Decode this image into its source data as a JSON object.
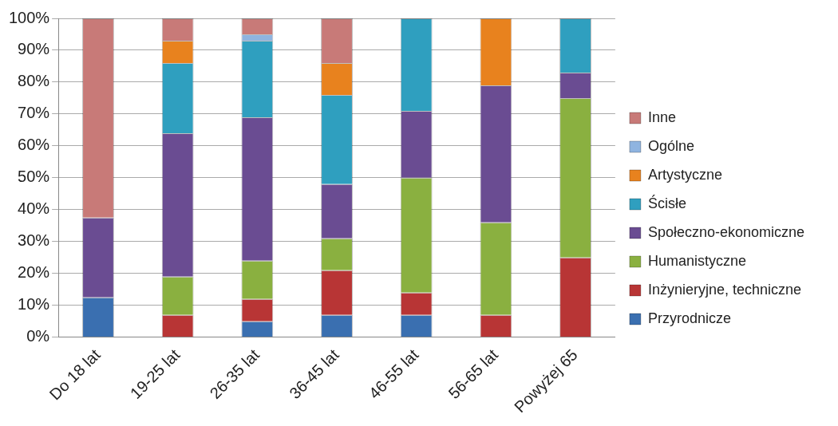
{
  "chart_data": {
    "type": "bar",
    "stacked": true,
    "categories": [
      "Do 18 lat",
      "19-25 lat",
      "26-35 lat",
      "36-45 lat",
      "46-55 lat",
      "56-65 lat",
      "Powyżej 65"
    ],
    "series": [
      {
        "name": "Przyrodnicze",
        "color": "#3a6fb0",
        "values": [
          12.5,
          0,
          5,
          7,
          7,
          0,
          0
        ]
      },
      {
        "name": "Inżynieryjne, techniczne",
        "color": "#b83535",
        "values": [
          0,
          7,
          7,
          14,
          7,
          7,
          25
        ]
      },
      {
        "name": "Humanistyczne",
        "color": "#8ab040",
        "values": [
          0,
          12,
          12,
          10,
          36,
          29,
          50
        ]
      },
      {
        "name": "Społeczno-ekonomiczne",
        "color": "#6a4c92",
        "values": [
          25,
          45,
          45,
          17,
          21,
          43,
          8
        ]
      },
      {
        "name": "Ścisłe",
        "color": "#2f9fbf",
        "values": [
          0,
          22,
          24,
          28,
          29,
          0,
          17
        ]
      },
      {
        "name": "Artystyczne",
        "color": "#e8821e",
        "values": [
          0,
          7,
          0,
          10,
          0,
          21,
          0
        ]
      },
      {
        "name": "Ogólne",
        "color": "#8fb4e0",
        "values": [
          0,
          0,
          2,
          0,
          0,
          0,
          0
        ]
      },
      {
        "name": "Inne",
        "color": "#c87a78",
        "values": [
          62.5,
          7,
          5,
          14,
          0,
          0,
          0
        ]
      }
    ],
    "ylim": [
      0,
      100
    ],
    "yticks": [
      {
        "value": 0,
        "label": "0%"
      },
      {
        "value": 10,
        "label": "10%"
      },
      {
        "value": 20,
        "label": "20%"
      },
      {
        "value": 30,
        "label": "30%"
      },
      {
        "value": 40,
        "label": "40%"
      },
      {
        "value": 50,
        "label": "50%"
      },
      {
        "value": 60,
        "label": "60%"
      },
      {
        "value": 70,
        "label": "70%"
      },
      {
        "value": 80,
        "label": "80%"
      },
      {
        "value": 90,
        "label": "90%"
      },
      {
        "value": 100,
        "label": "100%"
      }
    ],
    "grid": "y",
    "legend": "right"
  }
}
